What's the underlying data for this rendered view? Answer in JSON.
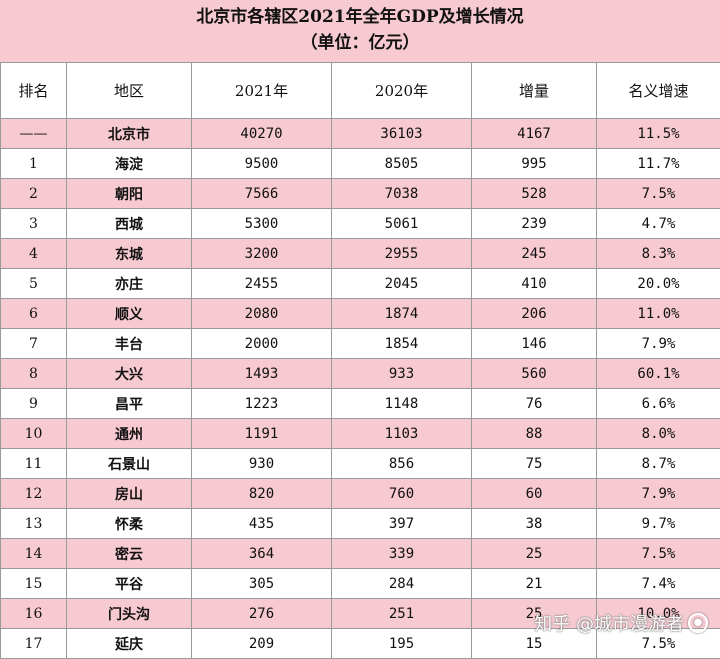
{
  "title": {
    "line1": "北京市各辖区2021年全年GDP及增长情况",
    "line2": "（单位：亿元）"
  },
  "table": {
    "headers": [
      "排名",
      "地区",
      "2021年",
      "2020年",
      "增量",
      "名义增速"
    ],
    "rows": [
      {
        "rank": "——",
        "region": "北京市",
        "y2021": "40270",
        "y2020": "36103",
        "increase": "4167",
        "rate": "11.5%"
      },
      {
        "rank": "1",
        "region": "海淀",
        "y2021": "9500",
        "y2020": "8505",
        "increase": "995",
        "rate": "11.7%"
      },
      {
        "rank": "2",
        "region": "朝阳",
        "y2021": "7566",
        "y2020": "7038",
        "increase": "528",
        "rate": "7.5%"
      },
      {
        "rank": "3",
        "region": "西城",
        "y2021": "5300",
        "y2020": "5061",
        "increase": "239",
        "rate": "4.7%"
      },
      {
        "rank": "4",
        "region": "东城",
        "y2021": "3200",
        "y2020": "2955",
        "increase": "245",
        "rate": "8.3%"
      },
      {
        "rank": "5",
        "region": "亦庄",
        "y2021": "2455",
        "y2020": "2045",
        "increase": "410",
        "rate": "20.0%"
      },
      {
        "rank": "6",
        "region": "顺义",
        "y2021": "2080",
        "y2020": "1874",
        "increase": "206",
        "rate": "11.0%"
      },
      {
        "rank": "7",
        "region": "丰台",
        "y2021": "2000",
        "y2020": "1854",
        "increase": "146",
        "rate": "7.9%"
      },
      {
        "rank": "8",
        "region": "大兴",
        "y2021": "1493",
        "y2020": "933",
        "increase": "560",
        "rate": "60.1%"
      },
      {
        "rank": "9",
        "region": "昌平",
        "y2021": "1223",
        "y2020": "1148",
        "increase": "76",
        "rate": "6.6%"
      },
      {
        "rank": "10",
        "region": "通州",
        "y2021": "1191",
        "y2020": "1103",
        "increase": "88",
        "rate": "8.0%"
      },
      {
        "rank": "11",
        "region": "石景山",
        "y2021": "930",
        "y2020": "856",
        "increase": "75",
        "rate": "8.7%"
      },
      {
        "rank": "12",
        "region": "房山",
        "y2021": "820",
        "y2020": "760",
        "increase": "60",
        "rate": "7.9%"
      },
      {
        "rank": "13",
        "region": "怀柔",
        "y2021": "435",
        "y2020": "397",
        "increase": "38",
        "rate": "9.7%"
      },
      {
        "rank": "14",
        "region": "密云",
        "y2021": "364",
        "y2020": "339",
        "increase": "25",
        "rate": "7.5%"
      },
      {
        "rank": "15",
        "region": "平谷",
        "y2021": "305",
        "y2020": "284",
        "increase": "21",
        "rate": "7.4%"
      },
      {
        "rank": "16",
        "region": "门头沟",
        "y2021": "276",
        "y2020": "251",
        "increase": "25",
        "rate": "10.0%"
      },
      {
        "rank": "17",
        "region": "延庆",
        "y2021": "209",
        "y2020": "195",
        "increase": "15",
        "rate": "7.5%"
      }
    ]
  },
  "watermark": {
    "text": "知乎 @城市漫游者"
  },
  "colors": {
    "row_highlight": "#f7c9d1",
    "border": "#9a9a9a"
  }
}
